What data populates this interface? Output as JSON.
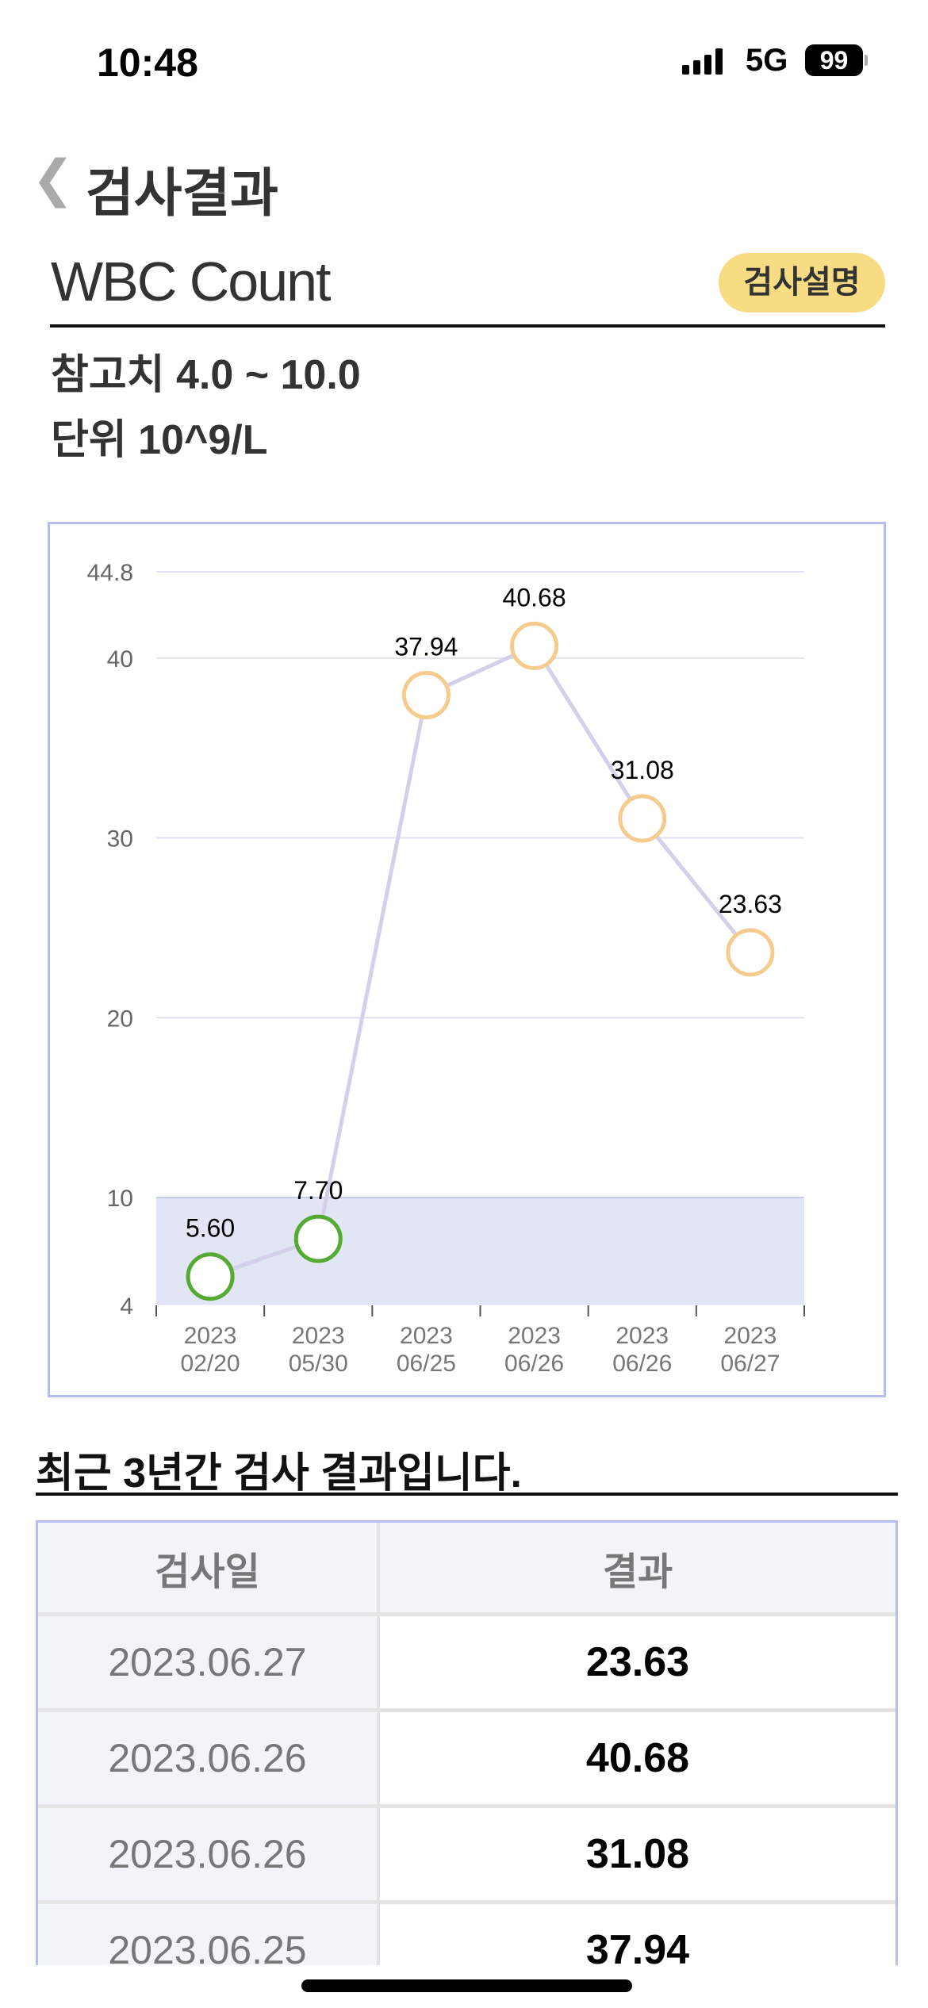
{
  "status": {
    "time": "10:48",
    "network": "5G",
    "battery": "99"
  },
  "header": {
    "title": "검사결과"
  },
  "test": {
    "name": "WBC Count",
    "info_button": "검사설명",
    "reference": "참고치 4.0 ~ 10.0",
    "unit": "단위 10^9/L"
  },
  "chart_data": {
    "type": "line",
    "categories": [
      [
        "2023",
        "02/20"
      ],
      [
        "2023",
        "05/30"
      ],
      [
        "2023",
        "06/25"
      ],
      [
        "2023",
        "06/26"
      ],
      [
        "2023",
        "06/26"
      ],
      [
        "2023",
        "06/27"
      ]
    ],
    "values": [
      5.6,
      7.7,
      37.94,
      40.68,
      31.08,
      23.63
    ],
    "labels": [
      "5.60",
      "7.70",
      "37.94",
      "40.68",
      "31.08",
      "23.63"
    ],
    "yticks": [
      "4",
      "10",
      "20",
      "30",
      "40",
      "44.8"
    ],
    "ylim": [
      4,
      44.8
    ],
    "normal_range": [
      4,
      10
    ],
    "colors": {
      "line": "#d4d0ea",
      "normal": "#55aa33",
      "abnormal": "#f6cb8e",
      "band": "#e2e5f3",
      "grid": "#e0e0f0"
    }
  },
  "history": {
    "heading": "최근 3년간 검사 결과입니다.",
    "columns": [
      "검사일",
      "결과"
    ],
    "rows": [
      [
        "2023.06.27",
        "23.63"
      ],
      [
        "2023.06.26",
        "40.68"
      ],
      [
        "2023.06.26",
        "31.08"
      ],
      [
        "2023.06.25",
        "37.94"
      ]
    ]
  }
}
